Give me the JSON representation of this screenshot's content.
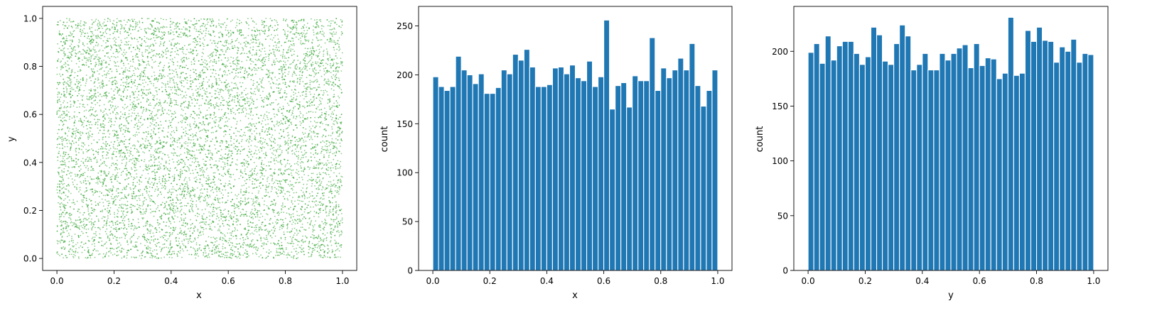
{
  "chart_data": [
    {
      "type": "scatter",
      "title": "",
      "xlabel": "x",
      "ylabel": "y",
      "xlim": [
        -0.05,
        1.05
      ],
      "ylim": [
        -0.05,
        1.05
      ],
      "xticks": [
        0.0,
        0.2,
        0.4,
        0.6,
        0.8,
        1.0
      ],
      "yticks": [
        0.0,
        0.2,
        0.4,
        0.6,
        0.8,
        1.0
      ],
      "point_color": "#2ca02c",
      "point_alpha": 0.55,
      "n_points": 10000,
      "distribution": "uniform on [0,1] x [0,1]",
      "grid": false,
      "legend": "none"
    },
    {
      "type": "bar",
      "title": "",
      "xlabel": "x",
      "ylabel": "count",
      "bins": 50,
      "bin_range": [
        0.0,
        1.0
      ],
      "xlim": [
        -0.05,
        1.05
      ],
      "ylim": [
        0,
        270
      ],
      "xticks": [
        0.0,
        0.2,
        0.4,
        0.6,
        0.8,
        1.0
      ],
      "yticks": [
        0,
        50,
        100,
        150,
        200,
        250
      ],
      "bar_color": "#1f77b4",
      "values": [
        198,
        188,
        184,
        188,
        219,
        205,
        200,
        191,
        201,
        181,
        181,
        187,
        205,
        201,
        221,
        215,
        226,
        208,
        188,
        188,
        190,
        207,
        208,
        201,
        210,
        197,
        194,
        214,
        188,
        198,
        256,
        165,
        189,
        192,
        167,
        199,
        194,
        194,
        238,
        184,
        207,
        197,
        205,
        217,
        205,
        232,
        189,
        168,
        184,
        205
      ],
      "grid": false,
      "legend": "none"
    },
    {
      "type": "bar",
      "title": "",
      "xlabel": "y",
      "ylabel": "count",
      "bins": 50,
      "bin_range": [
        0.0,
        1.0
      ],
      "xlim": [
        -0.05,
        1.05
      ],
      "ylim": [
        0,
        241
      ],
      "xticks": [
        0.0,
        0.2,
        0.4,
        0.6,
        0.8,
        1.0
      ],
      "yticks": [
        0,
        50,
        100,
        150,
        200
      ],
      "bar_color": "#1f77b4",
      "values": [
        199,
        207,
        189,
        214,
        192,
        205,
        209,
        209,
        198,
        188,
        195,
        222,
        215,
        191,
        188,
        207,
        224,
        214,
        183,
        188,
        198,
        183,
        183,
        198,
        192,
        198,
        203,
        206,
        185,
        207,
        187,
        194,
        193,
        175,
        180,
        231,
        178,
        180,
        219,
        209,
        222,
        210,
        209,
        190,
        204,
        200,
        211,
        190,
        198,
        197
      ],
      "grid": false,
      "legend": "none"
    }
  ]
}
